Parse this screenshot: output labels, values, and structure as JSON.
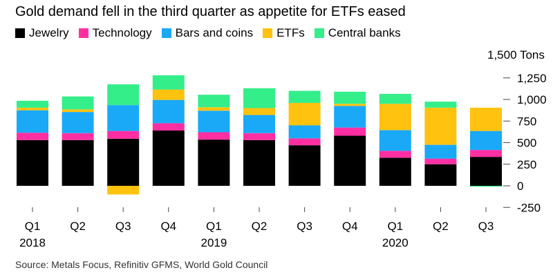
{
  "title": "Gold demand fell in the third quarter as appetite for ETFs eased",
  "source": "Source: Metals Focus, Refinitiv GFMS, World Gold Council",
  "chart_data": {
    "type": "bar",
    "stacked": true,
    "categories": [
      "Q1",
      "Q2",
      "Q3",
      "Q4",
      "Q1",
      "Q2",
      "Q3",
      "Q4",
      "Q1",
      "Q2",
      "Q3"
    ],
    "years": [
      {
        "label": "2018",
        "at_index": 0
      },
      {
        "label": "2019",
        "at_index": 4
      },
      {
        "label": "2020",
        "at_index": 8
      }
    ],
    "series": [
      {
        "name": "Jewelry",
        "color": "#000000",
        "values": [
          530,
          530,
          545,
          640,
          535,
          530,
          470,
          580,
          325,
          250,
          335
        ]
      },
      {
        "name": "Technology",
        "color": "#ff2fa2",
        "values": [
          85,
          80,
          90,
          85,
          85,
          80,
          80,
          95,
          80,
          65,
          80
        ]
      },
      {
        "name": "Bars and coins",
        "color": "#1aa9f7",
        "values": [
          260,
          245,
          300,
          270,
          250,
          210,
          150,
          250,
          240,
          160,
          220
        ]
      },
      {
        "name": "ETFs",
        "color": "#ffc20e",
        "values": [
          30,
          30,
          -100,
          120,
          40,
          80,
          260,
          25,
          305,
          430,
          270
        ]
      },
      {
        "name": "Central banks",
        "color": "#34ee8a",
        "values": [
          80,
          150,
          240,
          165,
          145,
          230,
          140,
          140,
          115,
          70,
          -10
        ]
      }
    ],
    "ylabel": "Tons",
    "ylim": [
      -250,
      1500
    ],
    "yticks": [
      {
        "value": 1500,
        "label": "1,500 Tons"
      },
      {
        "value": 1250,
        "label": "1,250"
      },
      {
        "value": 1000,
        "label": "1,000"
      },
      {
        "value": 750,
        "label": "750"
      },
      {
        "value": 500,
        "label": "500"
      },
      {
        "value": 250,
        "label": "250"
      },
      {
        "value": 0,
        "label": "0"
      },
      {
        "value": -250,
        "label": "-250"
      }
    ],
    "legend_position": "top-left",
    "grid": false
  }
}
